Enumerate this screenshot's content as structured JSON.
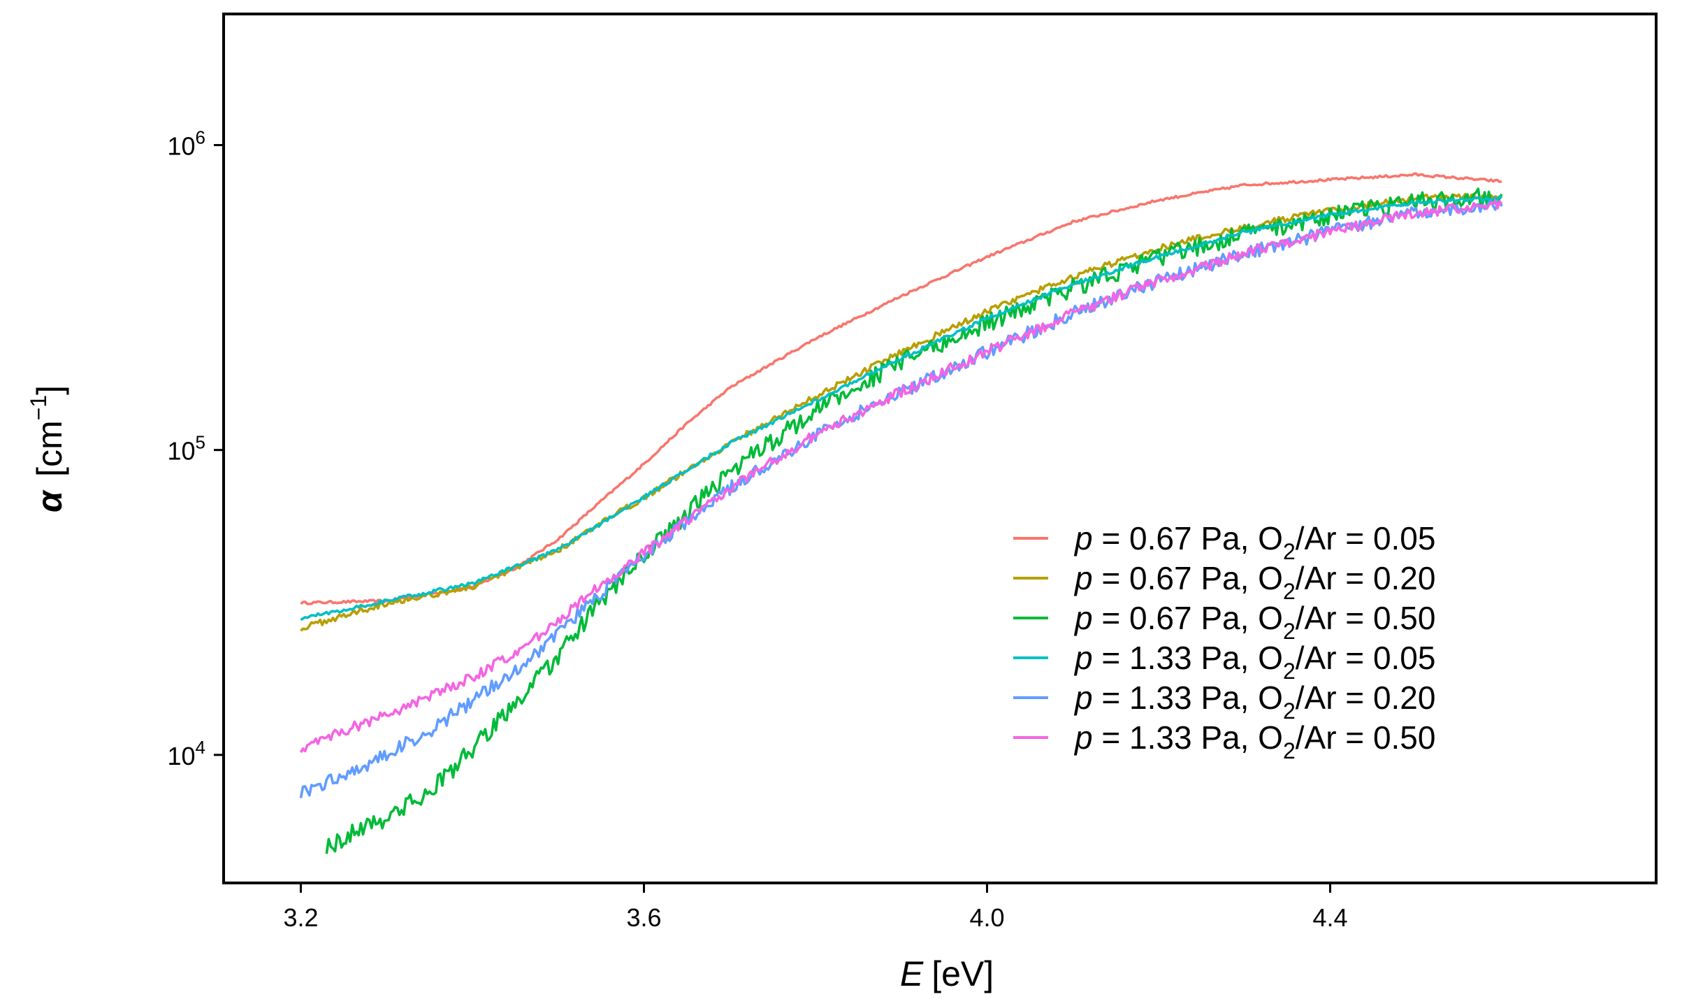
{
  "chart_data": {
    "type": "line",
    "title": "",
    "xlabel": {
      "symbol": "E",
      "unit": "[eV]"
    },
    "ylabel": {
      "symbol": "α",
      "unit_prefix": "[cm",
      "unit_exp": "−1",
      "unit_suffix": "]"
    },
    "xlim": [
      3.11,
      4.78
    ],
    "ylim_log10": [
      3.58,
      6.43
    ],
    "yscale": "log",
    "x_ticks": [
      3.2,
      3.6,
      4.0,
      4.4
    ],
    "x_tick_labels": [
      "3.2",
      "3.6",
      "4.0",
      "4.4"
    ],
    "y_ticks": [
      {
        "value": 10000,
        "base": "10",
        "exp": "4"
      },
      {
        "value": 100000,
        "base": "10",
        "exp": "5"
      },
      {
        "value": 1000000,
        "base": "10",
        "exp": "6"
      }
    ],
    "legend_position": "bottom-right",
    "series": [
      {
        "name": "p = 0.67 Pa, O2/Ar = 0.05",
        "label_parts": {
          "p": "p",
          "pressure": " = 0.67 Pa, O",
          "sub": "2",
          "ratio": "/Ar = 0.05"
        },
        "color": "#F8766D",
        "noise": 0.008,
        "x": [
          3.2,
          3.3,
          3.4,
          3.45,
          3.5,
          3.55,
          3.6,
          3.65,
          3.7,
          3.8,
          3.9,
          4.0,
          4.1,
          4.2,
          4.3,
          4.4,
          4.5,
          4.6
        ],
        "y": [
          31500,
          32000,
          35500,
          41000,
          51000,
          68000,
          90000,
          122000,
          160000,
          232000,
          320000,
          430000,
          560000,
          660000,
          740000,
          770000,
          800000,
          760000
        ]
      },
      {
        "name": "p = 0.67 Pa, O2/Ar = 0.20",
        "label_parts": {
          "p": "p",
          "pressure": " = 0.67 Pa, O",
          "sub": "2",
          "ratio": "/Ar = 0.20"
        },
        "color": "#B79F00",
        "noise": 0.02,
        "x": [
          3.2,
          3.3,
          3.4,
          3.5,
          3.6,
          3.7,
          3.8,
          3.9,
          4.0,
          4.1,
          4.2,
          4.3,
          4.4,
          4.5,
          4.6
        ],
        "y": [
          26000,
          31500,
          35500,
          47000,
          70000,
          105000,
          150000,
          210000,
          285000,
          370000,
          460000,
          540000,
          610000,
          670000,
          680000
        ]
      },
      {
        "name": "p = 0.67 Pa, O2/Ar = 0.50",
        "label_parts": {
          "p": "p",
          "pressure": " = 0.67 Pa, O",
          "sub": "2",
          "ratio": "/Ar = 0.50"
        },
        "color": "#00BA38",
        "noise": 0.06,
        "x": [
          3.23,
          3.25,
          3.28,
          3.3,
          3.35,
          3.4,
          3.45,
          3.5,
          3.55,
          3.6,
          3.7,
          3.8,
          3.9,
          4.0,
          4.1,
          4.2,
          4.3,
          4.4,
          4.5,
          4.6
        ],
        "y": [
          5000,
          5300,
          6000,
          6200,
          7600,
          10400,
          14800,
          21000,
          32000,
          45000,
          85000,
          135000,
          195000,
          260000,
          340000,
          430000,
          510000,
          590000,
          650000,
          690000
        ]
      },
      {
        "name": "p = 1.33 Pa, O2/Ar = 0.05",
        "label_parts": {
          "p": "p",
          "pressure": " = 1.33 Pa, O",
          "sub": "2",
          "ratio": "/Ar = 0.05"
        },
        "color": "#00BFC4",
        "noise": 0.012,
        "x": [
          3.2,
          3.3,
          3.4,
          3.5,
          3.6,
          3.7,
          3.8,
          3.9,
          4.0,
          4.1,
          4.2,
          4.3,
          4.4,
          4.5,
          4.6
        ],
        "y": [
          28000,
          32000,
          36500,
          47000,
          70000,
          105000,
          145000,
          200000,
          270000,
          350000,
          430000,
          520000,
          590000,
          650000,
          670000
        ]
      },
      {
        "name": "p = 1.33 Pa, O2/Ar = 0.20",
        "label_parts": {
          "p": "p",
          "pressure": " = 1.33 Pa, O",
          "sub": "2",
          "ratio": "/Ar = 0.20"
        },
        "color": "#619CFF",
        "noise": 0.045,
        "x": [
          3.2,
          3.25,
          3.3,
          3.35,
          3.4,
          3.45,
          3.5,
          3.55,
          3.6,
          3.7,
          3.8,
          3.9,
          4.0,
          4.1,
          4.2,
          4.3,
          4.4,
          4.5,
          4.6
        ],
        "y": [
          7500,
          8600,
          10000,
          12000,
          15000,
          19000,
          25000,
          34000,
          45000,
          75000,
          112000,
          155000,
          210000,
          280000,
          360000,
          440000,
          520000,
          600000,
          630000
        ]
      },
      {
        "name": "p = 1.33 Pa, O2/Ar = 0.50",
        "label_parts": {
          "p": "p",
          "pressure": " = 1.33 Pa, O",
          "sub": "2",
          "ratio": "/Ar = 0.50"
        },
        "color": "#F564E3",
        "noise": 0.035,
        "x": [
          3.2,
          3.25,
          3.3,
          3.35,
          3.4,
          3.45,
          3.5,
          3.55,
          3.6,
          3.7,
          3.8,
          3.9,
          4.0,
          4.1,
          4.2,
          4.3,
          4.4,
          4.5,
          4.6
        ],
        "y": [
          10500,
          12000,
          13500,
          15500,
          18000,
          21500,
          27500,
          36000,
          46000,
          75000,
          112000,
          155000,
          210000,
          280000,
          360000,
          440000,
          520000,
          600000,
          640000
        ]
      }
    ]
  }
}
